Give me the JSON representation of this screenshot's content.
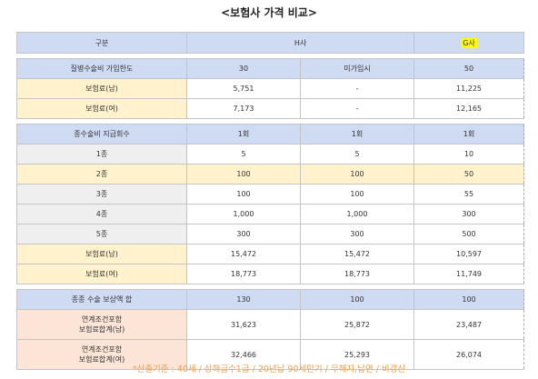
{
  "title": "<보험사 가격 비교>",
  "header": [
    "구분",
    "H사",
    "G사"
  ],
  "sections": [
    {
      "rows": [
        {
          "label": [
            "질병수술비 가입한도"
          ],
          "values": [
            "30",
            "미가입시",
            "50"
          ]
        },
        {
          "label": [
            "보험료(남)"
          ],
          "values": [
            "5,751",
            "-",
            "11,225"
          ]
        },
        {
          "label": [
            "보험료(여)"
          ],
          "values": [
            "7,173",
            "-",
            "12,165"
          ]
        }
      ]
    },
    {
      "rows": [
        {
          "label": [
            "종수술비 지급회수"
          ],
          "values": [
            "1회",
            "1회",
            "1회"
          ]
        },
        {
          "label": [
            "1종"
          ],
          "values": [
            "5",
            "5",
            "10"
          ]
        },
        {
          "label": [
            "2종"
          ],
          "values": [
            "100",
            "100",
            "50"
          ]
        },
        {
          "label": [
            "3종"
          ],
          "values": [
            "100",
            "100",
            "55"
          ]
        },
        {
          "label": [
            "4종"
          ],
          "values": [
            "1,000",
            "1,000",
            "300"
          ]
        },
        {
          "label": [
            "5종"
          ],
          "values": [
            "300",
            "300",
            "500"
          ]
        },
        {
          "label": [
            "보험료(남)"
          ],
          "values": [
            "15,472",
            "15,472",
            "10,597"
          ]
        },
        {
          "label": [
            "보험료(여)"
          ],
          "values": [
            "18,773",
            "18,773",
            "11,749"
          ]
        }
      ]
    },
    {
      "rows": [
        {
          "label": [
            "종종 수술 보상액 합"
          ],
          "values": [
            "130",
            "100",
            "100"
          ]
        },
        {
          "label": [
            "연계조건포함",
            "보험료합계(남)"
          ],
          "values": [
            "31,623",
            "25,872",
            "23,487"
          ]
        },
        {
          "label": [
            "연계조건포함",
            "보험료합계(여)"
          ],
          "values": [
            "32,466",
            "25,293",
            "26,074"
          ]
        }
      ]
    }
  ],
  "footnote": "*산출기준 : 40세 / 상해급수1급 / 20년납 90세만기 / 무해지,납면 / 비갱신"
}
